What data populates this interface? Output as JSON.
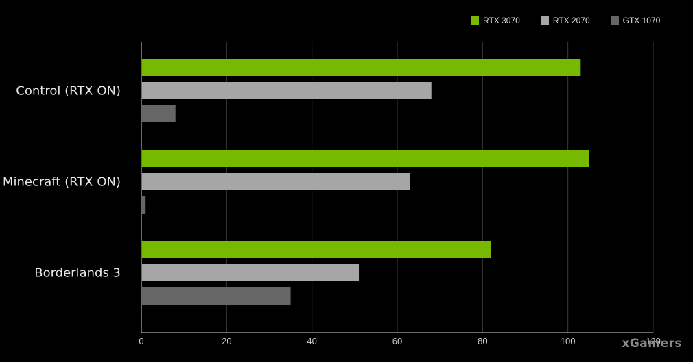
{
  "chart_data": {
    "type": "bar",
    "orientation": "horizontal",
    "categories": [
      "Control (RTX ON)",
      "Minecraft (RTX ON)",
      "Borderlands 3"
    ],
    "series": [
      {
        "name": "RTX 3070",
        "color": "#76b900",
        "values": [
          103,
          105,
          82
        ]
      },
      {
        "name": "RTX 2070",
        "color": "#a6a6a6",
        "values": [
          68,
          63,
          51
        ]
      },
      {
        "name": "GTX 1070",
        "color": "#666666",
        "values": [
          8,
          1,
          35
        ]
      }
    ],
    "xlim": [
      0,
      120
    ],
    "xticks": [
      0,
      20,
      40,
      60,
      80,
      100,
      120
    ],
    "grid": true,
    "legend": "top-right"
  },
  "watermark": "xGamers"
}
